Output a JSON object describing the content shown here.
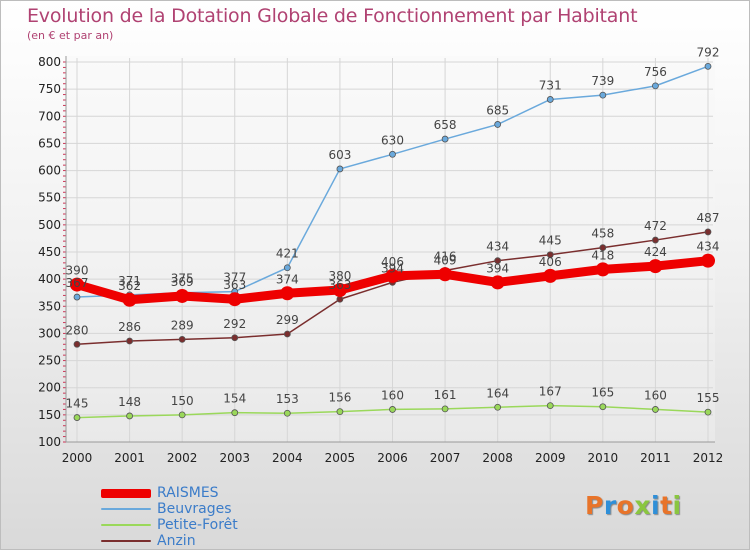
{
  "header": {
    "title": "Evolution de la Dotation Globale de Fonctionnement par Habitant",
    "subtitle": "(en € et par an)"
  },
  "colors": {
    "title": "#b04272",
    "grid": "#d6d6d6",
    "axis": "#999999",
    "legend_text": "#3b7cc9"
  },
  "logo": {
    "text": "Proxiti",
    "letter_colors": [
      "#e8742a",
      "#2f8fd8",
      "#e8742a",
      "#8ac640",
      "#2f8fd8",
      "#e8742a",
      "#8ac640"
    ]
  },
  "chart_data": {
    "type": "line",
    "x": [
      "2000",
      "2001",
      "2002",
      "2003",
      "2004",
      "2005",
      "2006",
      "2007",
      "2008",
      "2009",
      "2010",
      "2011",
      "2012"
    ],
    "ylim": [
      100,
      800
    ],
    "yticks": [
      100,
      150,
      200,
      250,
      300,
      350,
      400,
      450,
      500,
      550,
      600,
      650,
      700,
      750,
      800
    ],
    "grid": true,
    "legend_position": "bottom-left",
    "series": [
      {
        "name": "RAISMES",
        "color": "#ee0000",
        "width": 9,
        "marker": 7,
        "values": [
          390,
          362,
          369,
          363,
          374,
          380,
          406,
          409,
          394,
          406,
          418,
          424,
          434
        ]
      },
      {
        "name": "Beuvrages",
        "color": "#6aa9dc",
        "width": 1.5,
        "marker": 3,
        "values": [
          367,
          371,
          375,
          377,
          421,
          603,
          630,
          658,
          685,
          731,
          739,
          756,
          792
        ]
      },
      {
        "name": "Petite-Forêt",
        "color": "#9ad85a",
        "width": 1.5,
        "marker": 3,
        "values": [
          145,
          148,
          150,
          154,
          153,
          156,
          160,
          161,
          164,
          167,
          165,
          160,
          155
        ]
      },
      {
        "name": "Anzin",
        "color": "#7a2e2e",
        "width": 1.5,
        "marker": 3,
        "values": [
          280,
          286,
          289,
          292,
          299,
          363,
          394,
          416,
          434,
          445,
          458,
          472,
          487
        ]
      }
    ]
  }
}
